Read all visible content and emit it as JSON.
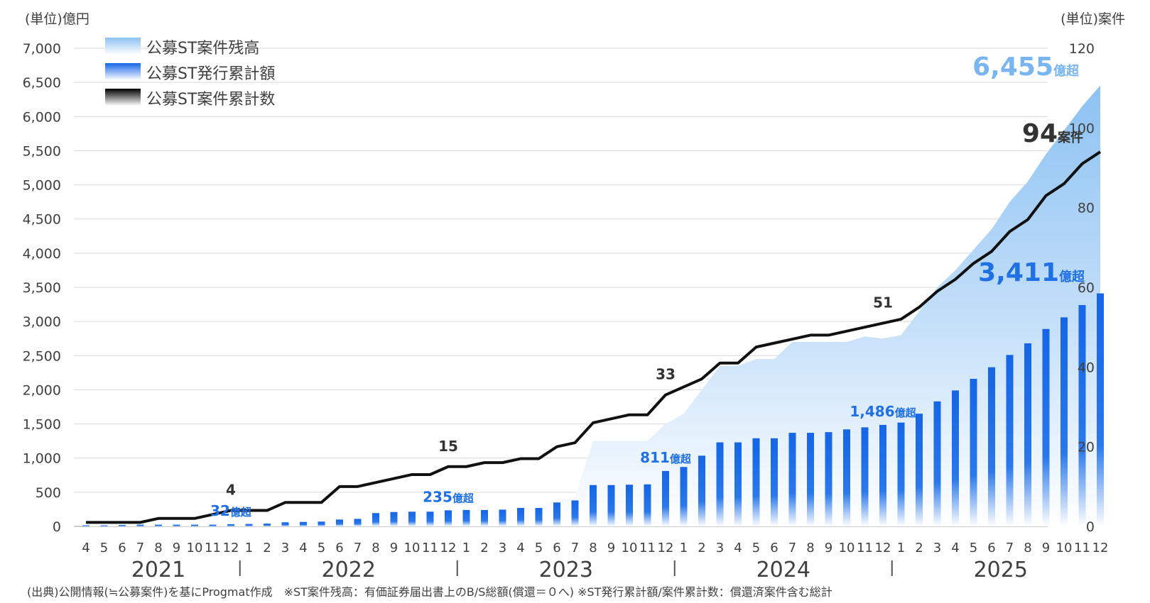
{
  "chart_data": {
    "type": "bar+area+line",
    "left_unit": "(単位)億円",
    "right_unit": "(単位)案件",
    "left_ylim": [
      0,
      7000
    ],
    "left_ticks": [
      "0",
      "500",
      "1,000",
      "1,500",
      "2,000",
      "2,500",
      "3,000",
      "3,500",
      "4,000",
      "4,500",
      "5,000",
      "5,500",
      "6,000",
      "6,500",
      "7,000"
    ],
    "right_ylim": [
      0,
      120
    ],
    "right_ticks": [
      "0",
      "20",
      "40",
      "60",
      "80",
      "100",
      "120"
    ],
    "months": [
      "4",
      "5",
      "6",
      "7",
      "8",
      "9",
      "10",
      "11",
      "12",
      "1",
      "2",
      "3",
      "4",
      "5",
      "6",
      "7",
      "8",
      "9",
      "10",
      "11",
      "12",
      "1",
      "2",
      "3",
      "4",
      "5",
      "6",
      "7",
      "8",
      "9",
      "10",
      "11",
      "12",
      "1",
      "2",
      "3",
      "4",
      "5",
      "6",
      "7",
      "8",
      "9",
      "10",
      "11",
      "12",
      "1",
      "2",
      "3",
      "4",
      "5",
      "6",
      "7",
      "8",
      "9",
      "10",
      "11",
      "12"
    ],
    "years": [
      {
        "label": "2021",
        "start": 0,
        "end": 8
      },
      {
        "label": "2022",
        "start": 9,
        "end": 20
      },
      {
        "label": "2023",
        "start": 21,
        "end": 32
      },
      {
        "label": "2024",
        "start": 33,
        "end": 44
      },
      {
        "label": "2025",
        "start": 45,
        "end": 56
      }
    ],
    "legend": [
      {
        "key": "area",
        "label": "公募ST案件残高"
      },
      {
        "key": "bar",
        "label": "公募ST発行累計額"
      },
      {
        "key": "line",
        "label": "公募ST案件累計数"
      }
    ],
    "series": [
      {
        "name": "公募ST案件残高",
        "axis": "left",
        "kind": "area",
        "values": [
          20,
          20,
          20,
          20,
          25,
          25,
          25,
          25,
          30,
          30,
          30,
          40,
          40,
          40,
          60,
          80,
          160,
          160,
          160,
          160,
          170,
          190,
          200,
          220,
          240,
          260,
          400,
          430,
          1250,
          1250,
          1250,
          1250,
          1500,
          1650,
          2000,
          2350,
          2350,
          2450,
          2450,
          2700,
          2700,
          2700,
          2700,
          2780,
          2750,
          2800,
          3150,
          3500,
          3750,
          4050,
          4350,
          4750,
          5050,
          5450,
          5800,
          6150,
          6455
        ]
      },
      {
        "name": "公募ST発行累計額",
        "axis": "left",
        "kind": "bar",
        "values": [
          15,
          15,
          20,
          25,
          25,
          25,
          25,
          25,
          32,
          35,
          40,
          60,
          65,
          70,
          100,
          110,
          195,
          210,
          215,
          215,
          235,
          240,
          240,
          245,
          270,
          270,
          350,
          380,
          605,
          605,
          610,
          615,
          811,
          870,
          1035,
          1230,
          1230,
          1290,
          1290,
          1370,
          1370,
          1380,
          1420,
          1450,
          1486,
          1520,
          1650,
          1830,
          1990,
          2160,
          2330,
          2510,
          2680,
          2890,
          3060,
          3240,
          3411
        ]
      },
      {
        "name": "公募ST案件累計数",
        "axis": "right",
        "kind": "line",
        "values": [
          1,
          1,
          1,
          1,
          2,
          2,
          2,
          3,
          4,
          4,
          4,
          6,
          6,
          6,
          10,
          10,
          11,
          12,
          13,
          13,
          15,
          15,
          16,
          16,
          17,
          17,
          20,
          21,
          26,
          27,
          28,
          28,
          33,
          35,
          37,
          41,
          41,
          45,
          46,
          47,
          48,
          48,
          49,
          50,
          51,
          52,
          55,
          59,
          62,
          66,
          69,
          74,
          77,
          83,
          86,
          91,
          94
        ]
      }
    ],
    "annotations": [
      {
        "series": "line",
        "index": 8,
        "value": "4",
        "unit": ""
      },
      {
        "series": "line",
        "index": 20,
        "value": "15",
        "unit": ""
      },
      {
        "series": "line",
        "index": 32,
        "value": "33",
        "unit": ""
      },
      {
        "series": "line",
        "index": 44,
        "value": "51",
        "unit": ""
      },
      {
        "series": "bar",
        "index": 8,
        "value": "32",
        "unit": "億超"
      },
      {
        "series": "bar",
        "index": 20,
        "value": "235",
        "unit": "億超"
      },
      {
        "series": "bar",
        "index": 32,
        "value": "811",
        "unit": "億超"
      },
      {
        "series": "bar",
        "index": 44,
        "value": "1,486",
        "unit": "億超"
      }
    ],
    "callouts": {
      "area": {
        "value": "6,455",
        "unit": "億超"
      },
      "line": {
        "value": "94",
        "unit": "案件"
      },
      "bar": {
        "value": "3,411",
        "unit": "億超"
      }
    },
    "colors": {
      "bar": "#1f6fe5",
      "area_top": "#93c6f4",
      "area_bottom": "#ffffff",
      "line": "#111111",
      "bar_label": "#1f6fe5",
      "area_label": "#79b5f0",
      "line_label": "#333333",
      "grid": "#d9d9d9",
      "axis_text": "#404040"
    }
  },
  "footnote": "(出典)公開情報(≒公募案件)を基にProgmat作成　※ST案件残高：有価証券届出書上のB/S総額(償還＝０へ) ※ST発行累計額/案件累計数：償還済案件含む総計"
}
